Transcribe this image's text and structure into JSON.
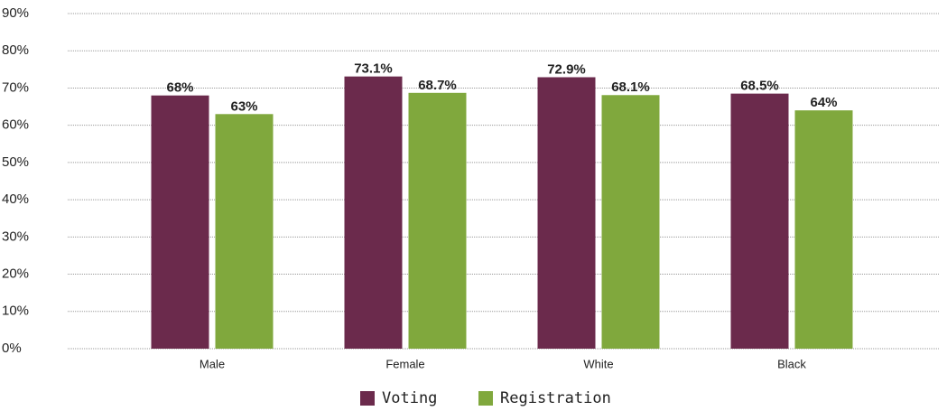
{
  "chart_data": {
    "type": "bar",
    "categories": [
      "Male",
      "Female",
      "White",
      "Black"
    ],
    "series": [
      {
        "name": "Voting",
        "color": "#6b2a4c",
        "values": [
          68,
          73.1,
          72.9,
          68.5
        ],
        "value_labels": [
          "68%",
          "73.1%",
          "72.9%",
          "68.5%"
        ]
      },
      {
        "name": "Registration",
        "color": "#80a83d",
        "values": [
          63,
          68.7,
          68.1,
          64
        ],
        "value_labels": [
          "63%",
          "68.7%",
          "68.1%",
          "64%"
        ]
      }
    ],
    "ylim": [
      0,
      90
    ],
    "yticks": [
      {
        "value": 0,
        "label": "0%"
      },
      {
        "value": 10,
        "label": "10%"
      },
      {
        "value": 20,
        "label": "20%"
      },
      {
        "value": 30,
        "label": "30%"
      },
      {
        "value": 40,
        "label": "40%"
      },
      {
        "value": 50,
        "label": "50%"
      },
      {
        "value": 60,
        "label": "60%"
      },
      {
        "value": 70,
        "label": "70%"
      },
      {
        "value": 80,
        "label": "80%"
      },
      {
        "value": 90,
        "label": "90%"
      }
    ],
    "grid": true,
    "legend": "bottom"
  }
}
